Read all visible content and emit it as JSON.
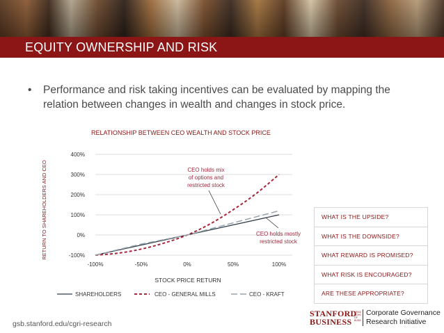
{
  "slide": {
    "title": "EQUITY OWNERSHIP AND RISK",
    "bullet_marker": "•",
    "bullet_text": "Performance and risk taking incentives can be evaluated by mapping the relation between changes in wealth and changes in stock price.",
    "url": "gsb.stanford.edu/cgri-research"
  },
  "logo": {
    "word1": "STANFORD",
    "word2": "BUSINESS",
    "small": "GRADUATE SCHOOL OF BUSINESS",
    "line1": "Corporate Governance",
    "line2": "Research Initiative"
  },
  "questions": [
    "WHAT IS THE UPSIDE?",
    "WHAT IS THE DOWNSIDE?",
    "WHAT REWARD IS PROMISED?",
    "WHAT RISK IS ENCOURAGED?",
    "ARE THESE APPROPRIATE?"
  ],
  "colors": {
    "accent": "#8c1515",
    "shareholders": "#2f3b48",
    "general_mills": "#a3283c",
    "kraft": "#9aa3aa",
    "grid": "#d0d0d0"
  },
  "chart_data": {
    "type": "line",
    "title": "RELATIONSHIP BETWEEN CEO WEALTH AND STOCK PRICE",
    "xlabel": "STOCK PRICE RETURN",
    "ylabel": "RETURN TO SHAREHOLDERS AND CEO",
    "xlim": [
      -100,
      100
    ],
    "ylim": [
      -100,
      400
    ],
    "x_ticks": [
      -100,
      -50,
      0,
      50,
      100
    ],
    "x_tick_labels": [
      "-100%",
      "-50%",
      "0%",
      "50%",
      "100%"
    ],
    "y_ticks": [
      -100,
      0,
      100,
      200,
      300,
      400
    ],
    "y_tick_labels": [
      "-100%",
      "0%",
      "100%",
      "200%",
      "300%",
      "400%"
    ],
    "series": [
      {
        "name": "SHAREHOLDERS",
        "style": "solid",
        "x": [
          -100,
          -50,
          0,
          50,
          100
        ],
        "y": [
          -100,
          -50,
          0,
          50,
          100
        ]
      },
      {
        "name": "CEO - GENERAL MILLS",
        "style": "dashed",
        "x": [
          -100,
          -75,
          -50,
          -25,
          0,
          25,
          50,
          75,
          100
        ],
        "y": [
          -100,
          -90,
          -70,
          -40,
          0,
          55,
          125,
          205,
          300
        ]
      },
      {
        "name": "CEO - KRAFT",
        "style": "longdash",
        "x": [
          -100,
          -50,
          0,
          50,
          100
        ],
        "y": [
          -100,
          -45,
          0,
          60,
          120
        ]
      }
    ],
    "annotations": [
      {
        "id": "gm",
        "text_lines": [
          "CEO holds mix",
          "of options and",
          "restricted stock"
        ],
        "points_to": [
          38,
          100
        ]
      },
      {
        "id": "kraft",
        "text_lines": [
          "CEO holds mostly",
          "restricted stock"
        ],
        "points_to": [
          88,
          88
        ]
      }
    ],
    "legend_position": "bottom"
  }
}
